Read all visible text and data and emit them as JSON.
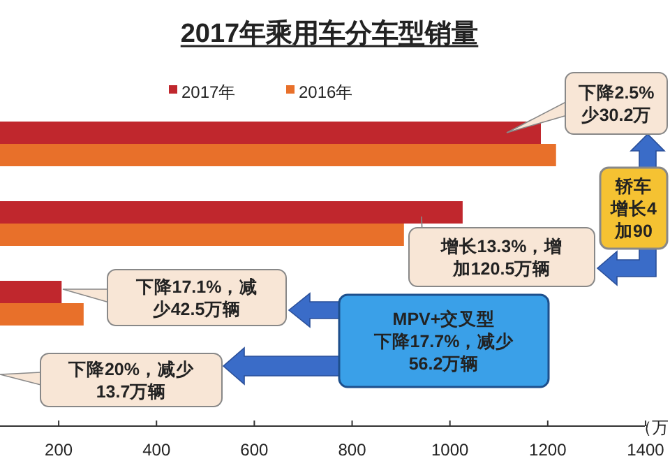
{
  "chart_data": {
    "type": "bar",
    "orientation": "horizontal",
    "title": "2017年乘用车分车型销量",
    "xlabel": "（万",
    "categories": [
      null,
      null,
      null
    ],
    "series": [
      {
        "name": "2017年",
        "color": "#c0272d",
        "values": [
          1186,
          1026,
          206
        ]
      },
      {
        "name": "2016年",
        "color": "#e8702a",
        "values": [
          1217,
          906,
          251
        ]
      }
    ],
    "xlim": [
      80,
      1450
    ],
    "xticks": [
      200,
      400,
      600,
      800,
      1000,
      1200,
      1400
    ],
    "legend": "top",
    "annotations": [
      "下降2.5%少30.2万",
      "轿车增长4加90",
      "增长13.3%，增加120.5万辆",
      "下降17.1%，减少42.5万辆",
      "MPV+交叉型下降17.7%，减少56.2万辆",
      "下降20%，减少13.7万辆"
    ]
  }
}
